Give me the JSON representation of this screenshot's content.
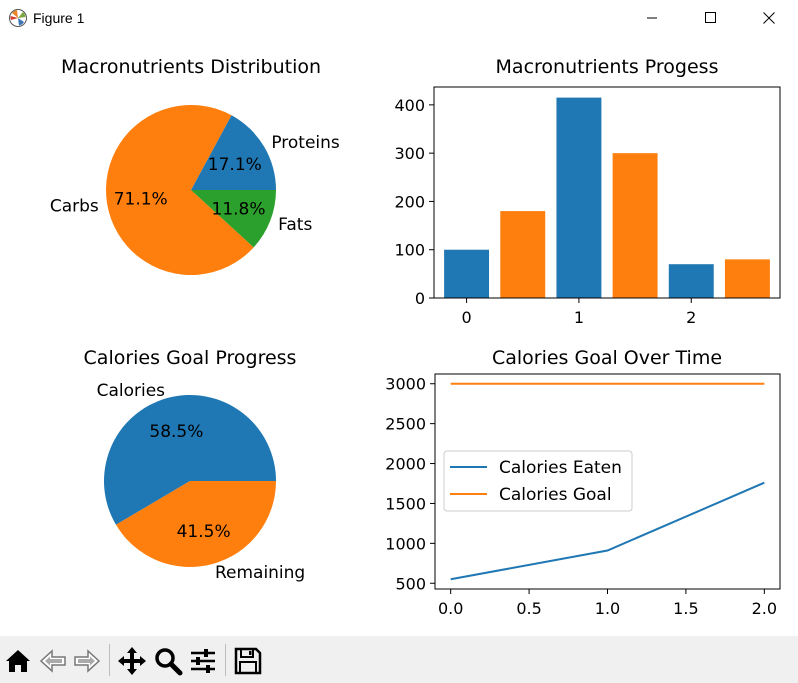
{
  "window": {
    "title": "Figure 1"
  },
  "icons": {
    "app": "matplotlib-figure-icon",
    "minimize": "minimize-icon",
    "maximize": "maximize-icon",
    "close": "close-icon"
  },
  "toolbar": {
    "buttons": [
      "home-icon",
      "back-arrow-icon",
      "forward-arrow-icon",
      "pan-icon",
      "zoom-icon",
      "configure-subplots-icon",
      "save-icon"
    ]
  },
  "colors": {
    "blue": "#1f77b4",
    "orange": "#ff7f0e",
    "green": "#2ca02c"
  },
  "chart_data": [
    {
      "type": "pie",
      "title": "Macronutrients Distribution",
      "labels": [
        "Proteins",
        "Carbs",
        "Fats"
      ],
      "values": [
        17.1,
        71.1,
        11.8
      ],
      "autopct": [
        "17.1%",
        "71.1%",
        "11.8%"
      ],
      "colors": [
        "#1f77b4",
        "#ff7f0e",
        "#2ca02c"
      ]
    },
    {
      "type": "bar",
      "title": "Macronutrients Progess",
      "x": [
        0,
        0.5,
        1,
        1.5,
        2,
        2.5
      ],
      "values": [
        100,
        180,
        415,
        300,
        70,
        80
      ],
      "colors": [
        "#1f77b4",
        "#ff7f0e",
        "#1f77b4",
        "#ff7f0e",
        "#1f77b4",
        "#ff7f0e"
      ],
      "xticks": [
        "0",
        "1",
        "2"
      ],
      "yticks": [
        "0",
        "100",
        "200",
        "300",
        "400"
      ],
      "ylim": [
        0,
        437
      ]
    },
    {
      "type": "pie",
      "title": "Calories Goal Progress",
      "labels": [
        "Calories",
        "Remaining"
      ],
      "values": [
        58.5,
        41.5
      ],
      "autopct": [
        "58.5%",
        "41.5%"
      ],
      "colors": [
        "#1f77b4",
        "#ff7f0e"
      ]
    },
    {
      "type": "line",
      "title": "Calories Goal Over Time",
      "x": [
        0,
        1,
        2
      ],
      "series": [
        {
          "name": "Calories Eaten",
          "values": [
            550,
            910,
            1760
          ],
          "color": "#1f77b4"
        },
        {
          "name": "Calories Goal",
          "values": [
            3000,
            3000,
            3000
          ],
          "color": "#ff7f0e"
        }
      ],
      "xticks": [
        "0.0",
        "0.5",
        "1.0",
        "1.5",
        "2.0"
      ],
      "yticks": [
        "500",
        "1000",
        "1500",
        "2000",
        "2500",
        "3000"
      ],
      "xlim": [
        -0.1,
        2.1
      ],
      "ylim": [
        428,
        3122
      ],
      "legend": "center-left"
    }
  ]
}
